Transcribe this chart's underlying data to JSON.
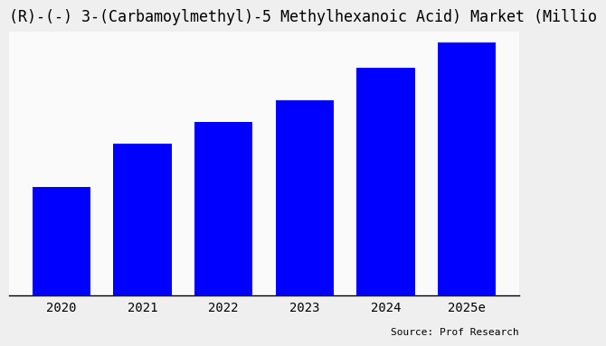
{
  "title": "(R)-(-) 3-(Carbamoylmethyl)-5 Methylhexanoic Acid) Market (Millio",
  "categories": [
    "2020",
    "2021",
    "2022",
    "2023",
    "2024",
    "2025e"
  ],
  "values": [
    0.3,
    0.42,
    0.48,
    0.54,
    0.63,
    0.7
  ],
  "bar_color": "#0000FF",
  "background_color": "#EFEFEF",
  "plot_bg_color": "#FAFAFA",
  "source_text": "Source: Prof Research",
  "title_fontsize": 12,
  "tick_fontsize": 10,
  "source_fontsize": 8,
  "bar_width": 0.72,
  "ylim": [
    0,
    0.73
  ]
}
